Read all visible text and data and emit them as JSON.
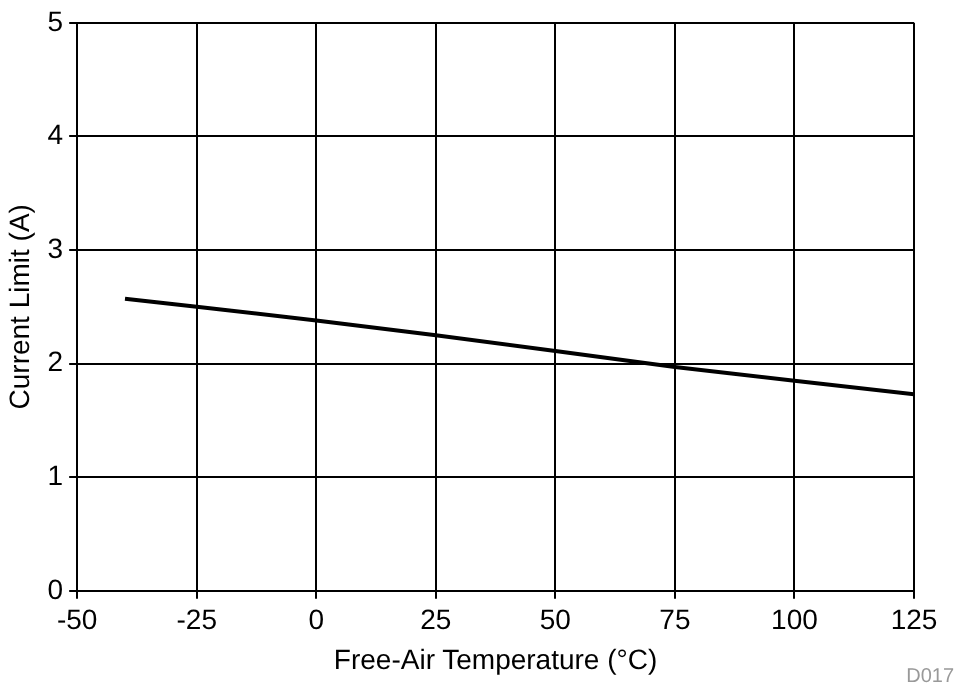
{
  "chart_data": {
    "type": "line",
    "xlabel": "Free-Air Temperature (°C)",
    "ylabel": "Current Limit (A)",
    "x": [
      -40,
      -25,
      0,
      25,
      50,
      75,
      100,
      125
    ],
    "series": [
      {
        "color": "#000000",
        "values": [
          2.57,
          2.5,
          2.38,
          2.25,
          2.11,
          1.97,
          1.85,
          1.73
        ]
      }
    ],
    "xlim": [
      -50,
      125
    ],
    "xticks": [
      -50,
      -25,
      0,
      25,
      50,
      75,
      100,
      125
    ],
    "ylim": [
      0,
      5
    ],
    "yticks": [
      0,
      1,
      2,
      3,
      4,
      5
    ],
    "grid": true,
    "legend": false,
    "marker": "none",
    "line_style": "solid",
    "annotations": [
      "D017"
    ]
  }
}
